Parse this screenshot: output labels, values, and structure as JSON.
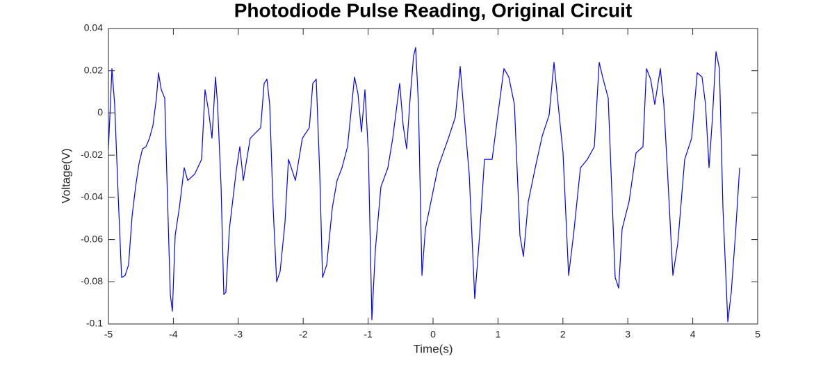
{
  "chart_data": {
    "type": "line",
    "title": "Photodiode Pulse Reading, Original Circuit",
    "xlabel": "Time(s)",
    "ylabel": "Voltage(V)",
    "xlim": [
      -5,
      5
    ],
    "xticks": [
      -5,
      -4,
      -3,
      -2,
      -1,
      0,
      1,
      2,
      3,
      4,
      5
    ],
    "ylim": [
      -0.1,
      0.04
    ],
    "yticks": [
      -0.1,
      -0.08,
      -0.06,
      -0.04,
      -0.02,
      0,
      0.02,
      0.04
    ],
    "grid": false,
    "series": [
      {
        "color": "#0000ff",
        "x": [
          -5.0,
          -4.946,
          -4.904,
          -4.85,
          -4.797,
          -4.743,
          -4.69,
          -4.636,
          -4.582,
          -4.529,
          -4.475,
          -4.422,
          -4.368,
          -4.315,
          -4.261,
          -4.229,
          -4.186,
          -4.133,
          -4.101,
          -4.047,
          -4.015,
          -3.972,
          -3.908,
          -3.833,
          -3.779,
          -3.672,
          -3.565,
          -3.512,
          -3.458,
          -3.405,
          -3.351,
          -3.319,
          -3.265,
          -3.223,
          -3.191,
          -3.137,
          -3.03,
          -2.976,
          -2.923,
          -2.816,
          -2.655,
          -2.602,
          -2.559,
          -2.516,
          -2.463,
          -2.409,
          -2.355,
          -2.281,
          -2.227,
          -2.12,
          -2.013,
          -1.906,
          -1.852,
          -1.799,
          -1.745,
          -1.702,
          -1.638,
          -1.552,
          -1.478,
          -1.403,
          -1.317,
          -1.21,
          -1.156,
          -1.103,
          -1.049,
          -0.996,
          -0.942,
          -0.889,
          -0.803,
          -0.696,
          -0.621,
          -0.514,
          -0.46,
          -0.407,
          -0.353,
          -0.3,
          -0.268,
          -0.225,
          -0.171,
          -0.118,
          -0.032,
          0.075,
          0.236,
          0.343,
          0.418,
          0.471,
          0.557,
          0.642,
          0.717,
          0.792,
          0.91,
          0.985,
          1.092,
          1.167,
          1.253,
          1.338,
          1.392,
          1.467,
          1.574,
          1.681,
          1.788,
          1.863,
          1.927,
          2.002,
          2.088,
          2.163,
          2.27,
          2.377,
          2.484,
          2.559,
          2.612,
          2.698,
          2.805,
          2.859,
          2.912,
          3.019,
          3.126,
          3.233,
          3.287,
          3.351,
          3.415,
          3.501,
          3.555,
          3.608,
          3.694,
          3.769,
          3.876,
          3.983,
          4.069,
          4.143,
          4.197,
          4.251,
          4.304,
          4.358,
          4.411,
          4.465,
          4.54,
          4.593,
          4.657,
          4.722
        ],
        "values": [
          -0.017,
          0.021,
          0.004,
          -0.039,
          -0.078,
          -0.077,
          -0.072,
          -0.049,
          -0.035,
          -0.024,
          -0.017,
          -0.016,
          -0.012,
          -0.006,
          0.007,
          0.019,
          0.011,
          0.007,
          -0.029,
          -0.086,
          -0.094,
          -0.058,
          -0.045,
          -0.026,
          -0.032,
          -0.029,
          -0.022,
          0.011,
          0.001,
          -0.012,
          0.017,
          0.004,
          -0.035,
          -0.086,
          -0.085,
          -0.055,
          -0.027,
          -0.016,
          -0.032,
          -0.012,
          -0.007,
          0.014,
          0.016,
          0.004,
          -0.045,
          -0.08,
          -0.075,
          -0.052,
          -0.022,
          -0.032,
          -0.012,
          -0.007,
          0.014,
          0.016,
          -0.029,
          -0.078,
          -0.072,
          -0.045,
          -0.032,
          -0.026,
          -0.016,
          0.017,
          0.009,
          -0.009,
          0.011,
          -0.019,
          -0.098,
          -0.065,
          -0.035,
          -0.026,
          -0.012,
          0.014,
          -0.006,
          -0.017,
          0.007,
          0.027,
          0.031,
          0.004,
          -0.077,
          -0.055,
          -0.042,
          -0.026,
          -0.012,
          -0.002,
          0.022,
          0.002,
          -0.029,
          -0.088,
          -0.058,
          -0.022,
          -0.022,
          -0.004,
          0.021,
          0.017,
          0.004,
          -0.058,
          -0.068,
          -0.042,
          -0.026,
          -0.011,
          -0.001,
          0.024,
          0.004,
          -0.019,
          -0.077,
          -0.058,
          -0.026,
          -0.022,
          -0.016,
          0.024,
          0.017,
          0.007,
          -0.078,
          -0.083,
          -0.055,
          -0.042,
          -0.019,
          -0.016,
          0.021,
          0.016,
          0.004,
          0.021,
          0.004,
          -0.026,
          -0.077,
          -0.062,
          -0.022,
          -0.012,
          0.019,
          0.017,
          0.004,
          -0.026,
          -0.002,
          0.029,
          0.021,
          -0.045,
          -0.099,
          -0.085,
          -0.058,
          -0.026
        ]
      }
    ]
  }
}
